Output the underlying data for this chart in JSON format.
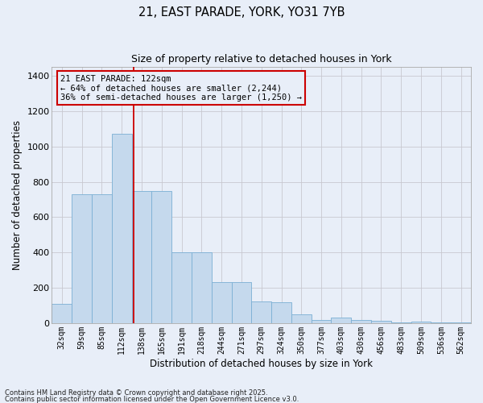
{
  "title1": "21, EAST PARADE, YORK, YO31 7YB",
  "title2": "Size of property relative to detached houses in York",
  "xlabel": "Distribution of detached houses by size in York",
  "ylabel": "Number of detached properties",
  "categories": [
    "32sqm",
    "59sqm",
    "85sqm",
    "112sqm",
    "138sqm",
    "165sqm",
    "191sqm",
    "218sqm",
    "244sqm",
    "271sqm",
    "297sqm",
    "324sqm",
    "350sqm",
    "377sqm",
    "403sqm",
    "430sqm",
    "456sqm",
    "483sqm",
    "509sqm",
    "536sqm",
    "562sqm"
  ],
  "values": [
    110,
    730,
    730,
    1070,
    750,
    750,
    400,
    400,
    230,
    230,
    125,
    120,
    50,
    20,
    30,
    20,
    15,
    2,
    10,
    2,
    2
  ],
  "bar_color": "#c5d9ed",
  "bar_edge_color": "#7bafd4",
  "bg_color": "#e8eef8",
  "grid_color": "#c8c8d0",
  "red_line_x": 3.58,
  "annotation_text": "21 EAST PARADE: 122sqm\n← 64% of detached houses are smaller (2,244)\n36% of semi-detached houses are larger (1,250) →",
  "annotation_box_color": "#cc0000",
  "footnote1": "Contains HM Land Registry data © Crown copyright and database right 2025.",
  "footnote2": "Contains public sector information licensed under the Open Government Licence v3.0.",
  "ylim": [
    0,
    1450
  ],
  "yticks": [
    0,
    200,
    400,
    600,
    800,
    1000,
    1200,
    1400
  ]
}
